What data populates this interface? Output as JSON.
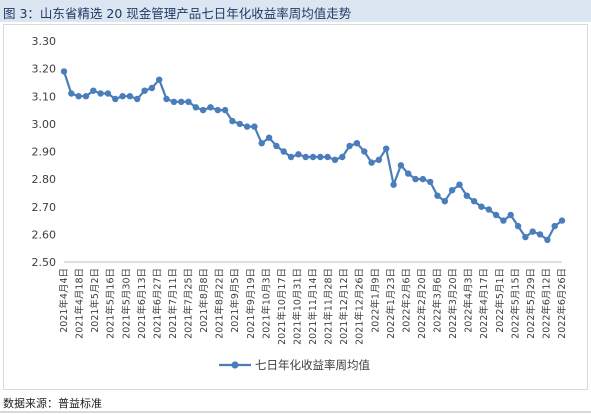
{
  "figure": {
    "title": "图 3：山东省精选 20 现金管理产品七日年化收益率周均值走势",
    "source": "数据来源：普益标准"
  },
  "colors": {
    "series": "#4a7ebb",
    "axis": "#bfbfbf",
    "title_band": "#dce6f2"
  },
  "chart_data": {
    "type": "line",
    "title": "",
    "xlabel": "",
    "ylabel": "",
    "ylim": [
      2.5,
      3.3
    ],
    "yticks": [
      "2.50",
      "2.60",
      "2.70",
      "2.80",
      "2.90",
      "3.00",
      "3.10",
      "3.20",
      "3.30"
    ],
    "grid": false,
    "legend": "bottom-center",
    "x_tick_labels": [
      "2021年4月4日",
      "2021年4月18日",
      "2021年5月2日",
      "2021年5月16日",
      "2021年5月30日",
      "2021年6月13日",
      "2021年6月27日",
      "2021年7月11日",
      "2021年7月25日",
      "2021年8月8日",
      "2021年8月22日",
      "2021年9月5日",
      "2021年9月19日",
      "2021年10月3日",
      "2021年10月17日",
      "2021年10月31日",
      "2021年11月14日",
      "2021年11月28日",
      "2021年12月12日",
      "2021年12月26日",
      "2022年1月9日",
      "2022年1月23日",
      "2022年2月6日",
      "2022年2月20日",
      "2022年3月6日",
      "2022年3月20日",
      "2022年4月3日",
      "2022年4月17日",
      "2022年5月1日",
      "2022年5月15日",
      "2022年5月29日",
      "2022年6月12日",
      "2022年6月26日"
    ],
    "series": [
      {
        "name": "七日年化收益率周均值",
        "values": [
          3.19,
          3.11,
          3.1,
          3.1,
          3.12,
          3.11,
          3.11,
          3.09,
          3.1,
          3.1,
          3.09,
          3.12,
          3.13,
          3.16,
          3.09,
          3.08,
          3.08,
          3.08,
          3.06,
          3.05,
          3.06,
          3.05,
          3.05,
          3.01,
          3.0,
          2.99,
          2.99,
          2.93,
          2.95,
          2.92,
          2.9,
          2.88,
          2.89,
          2.88,
          2.88,
          2.88,
          2.88,
          2.87,
          2.88,
          2.92,
          2.93,
          2.9,
          2.86,
          2.87,
          2.91,
          2.78,
          2.85,
          2.82,
          2.8,
          2.8,
          2.79,
          2.74,
          2.72,
          2.76,
          2.78,
          2.74,
          2.72,
          2.7,
          2.69,
          2.67,
          2.65,
          2.67,
          2.63,
          2.59,
          2.61,
          2.6,
          2.58,
          2.63,
          2.65
        ]
      }
    ]
  }
}
